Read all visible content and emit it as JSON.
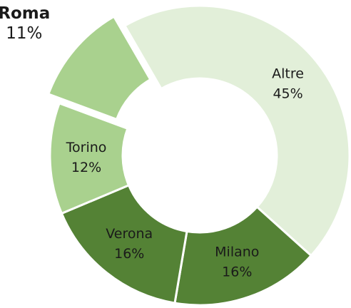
{
  "chart_data": {
    "type": "donut",
    "categories": [
      "Altre",
      "Milano",
      "Verona",
      "Torino",
      "Roma"
    ],
    "values": [
      45,
      16,
      16,
      12,
      11
    ],
    "value_labels": [
      "45%",
      "16%",
      "16%",
      "12%",
      "11%"
    ],
    "colors": [
      "#e2efd9",
      "#548235",
      "#548235",
      "#a9d18e",
      "#a9d18e"
    ],
    "exploded": [
      "Roma"
    ]
  }
}
